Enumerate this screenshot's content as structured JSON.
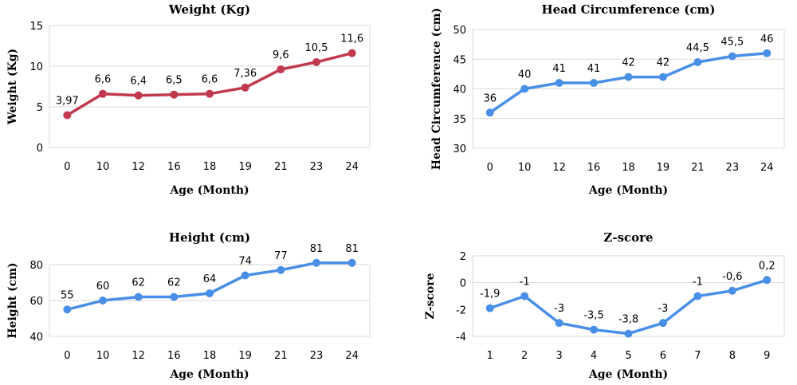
{
  "chart_data": [
    {
      "type": "line",
      "title": "Weight (Kg)",
      "xlabel": "Age (Month)",
      "ylabel": "Weight (Kg)",
      "categories": [
        "0",
        "10",
        "12",
        "16",
        "18",
        "19",
        "21",
        "23",
        "24"
      ],
      "values": [
        3.97,
        6.6,
        6.4,
        6.5,
        6.6,
        7.36,
        9.6,
        10.5,
        11.6
      ],
      "data_labels": [
        "3,97",
        "6,6",
        "6,4",
        "6,5",
        "6,6",
        "7,36",
        "9,6",
        "10,5",
        "11,6"
      ],
      "ylim": [
        0,
        15
      ],
      "yticks": [
        0,
        5,
        10,
        15
      ],
      "grid": true,
      "color": "#c0394e"
    },
    {
      "type": "line",
      "title": "Head Circumference (cm)",
      "xlabel": "Age (Month)",
      "ylabel": "Head Circumference (cm)",
      "categories": [
        "0",
        "10",
        "12",
        "16",
        "18",
        "19",
        "21",
        "23",
        "24"
      ],
      "values": [
        36,
        40,
        41,
        41,
        42,
        42,
        44.5,
        45.5,
        46
      ],
      "data_labels": [
        "36",
        "40",
        "41",
        "41",
        "42",
        "42",
        "44,5",
        "45,5",
        "46"
      ],
      "ylim": [
        30,
        50
      ],
      "yticks": [
        30,
        35,
        40,
        45,
        50
      ],
      "grid": true,
      "color": "#4a8fe7"
    },
    {
      "type": "line",
      "title": "Height (cm)",
      "xlabel": "Age (Month)",
      "ylabel": "Height (cm)",
      "categories": [
        "0",
        "10",
        "12",
        "16",
        "18",
        "19",
        "21",
        "23",
        "24"
      ],
      "values": [
        55,
        60,
        62,
        62,
        64,
        74,
        77,
        81,
        81
      ],
      "data_labels": [
        "55",
        "60",
        "62",
        "62",
        "64",
        "74",
        "77",
        "81",
        "81"
      ],
      "ylim": [
        40,
        80
      ],
      "yticks": [
        40,
        60,
        80
      ],
      "grid": true,
      "color": "#4a8fe7"
    },
    {
      "type": "line",
      "title": "Z-score",
      "xlabel": "Age (Month)",
      "ylabel": "Z-score",
      "categories": [
        "1",
        "2",
        "3",
        "4",
        "5",
        "6",
        "7",
        "8",
        "9"
      ],
      "values": [
        -1.9,
        -1,
        -3,
        -3.5,
        -3.8,
        -3,
        -1,
        -0.6,
        0.2
      ],
      "data_labels": [
        "-1,9",
        "-1",
        "-3",
        "-3,5",
        "-3,8",
        "-3",
        "-1",
        "-0,6",
        "0,2"
      ],
      "ylim": [
        -4,
        2
      ],
      "yticks": [
        -4,
        -2,
        0,
        2
      ],
      "grid": false,
      "color": "#4a8fe7"
    }
  ]
}
